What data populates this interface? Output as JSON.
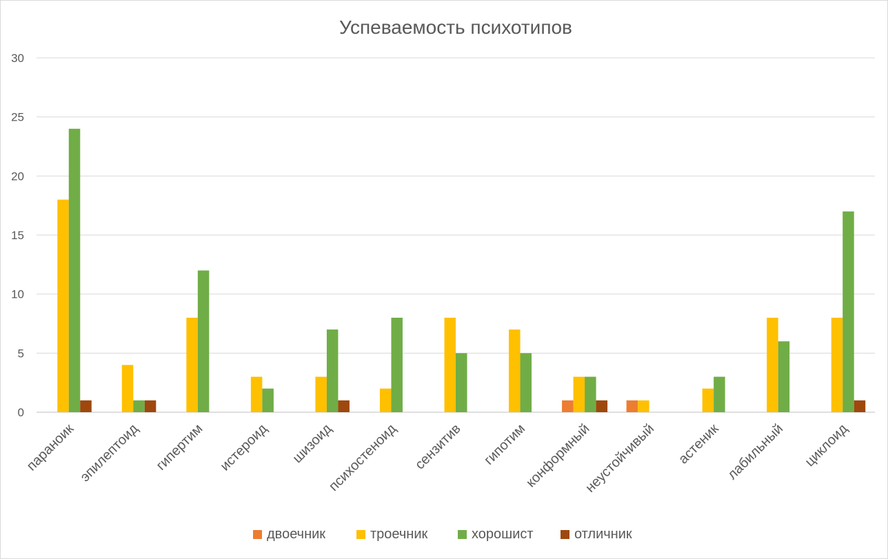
{
  "chart_data": {
    "type": "bar",
    "title": "Успеваемость психотипов",
    "xlabel": "",
    "ylabel": "",
    "ylim": [
      0,
      30
    ],
    "yticks": [
      0,
      5,
      10,
      15,
      20,
      25,
      30
    ],
    "grid": true,
    "legend_position": "bottom",
    "categories": [
      "параноик",
      "эпилептоид",
      "гипертим",
      "истероид",
      "шизоид",
      "психостеноид",
      "сензитив",
      "гипотим",
      "конформный",
      "неустойчивый",
      "астеник",
      "лабильный",
      "циклоид"
    ],
    "series": [
      {
        "name": "двоечник",
        "color": "#ed7d31",
        "values": [
          0,
          0,
          0,
          0,
          0,
          0,
          0,
          0,
          1,
          1,
          0,
          0,
          0
        ]
      },
      {
        "name": "троечник",
        "color": "#ffc000",
        "values": [
          18,
          4,
          8,
          3,
          3,
          2,
          8,
          7,
          3,
          1,
          2,
          8,
          8
        ]
      },
      {
        "name": "хорошист",
        "color": "#70ad47",
        "values": [
          24,
          1,
          12,
          2,
          7,
          8,
          5,
          5,
          3,
          0,
          3,
          6,
          17
        ]
      },
      {
        "name": "отличник",
        "color": "#9e480e",
        "values": [
          1,
          1,
          0,
          0,
          1,
          0,
          0,
          0,
          1,
          0,
          0,
          0,
          1
        ]
      }
    ]
  }
}
